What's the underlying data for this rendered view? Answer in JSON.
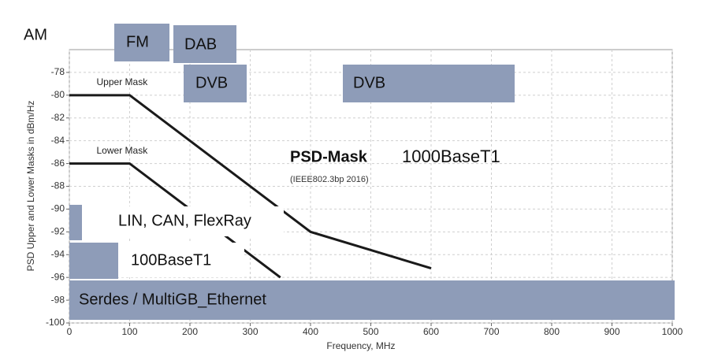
{
  "chart_data": {
    "type": "line",
    "xlabel": "Frequency, MHz",
    "ylabel": "PSD Upper and Lower Masks in dBm/Hz",
    "xlim": [
      0,
      1000
    ],
    "xticks": [
      0,
      100,
      200,
      300,
      400,
      500,
      600,
      700,
      800,
      900,
      1000
    ],
    "ylim": [
      -100,
      -76
    ],
    "yticks": [
      -100,
      -98,
      -96,
      -94,
      -92,
      -90,
      -88,
      -86,
      -84,
      -82,
      -80,
      -78
    ],
    "grid": true,
    "series": [
      {
        "name": "Upper Mask",
        "color": "#1a1a1a",
        "x": [
          0,
          100,
          400,
          600
        ],
        "values": [
          -80,
          -80,
          -92,
          -95.2
        ]
      },
      {
        "name": "Lower Mask",
        "color": "#1a1a1a",
        "x": [
          0,
          100,
          350
        ],
        "values": [
          -86,
          -86,
          -96
        ]
      }
    ],
    "bands": [
      "AM",
      "FM",
      "DAB",
      "DVB",
      "DVB",
      "LIN, CAN, FlexRay",
      "100BaseT1",
      "Serdes  / MultiGB_Ethernet"
    ],
    "mask_title": "PSD-Mask",
    "mask_name": "1000BaseT1",
    "mask_standard": "(IEEE802.3bp 2016)"
  }
}
